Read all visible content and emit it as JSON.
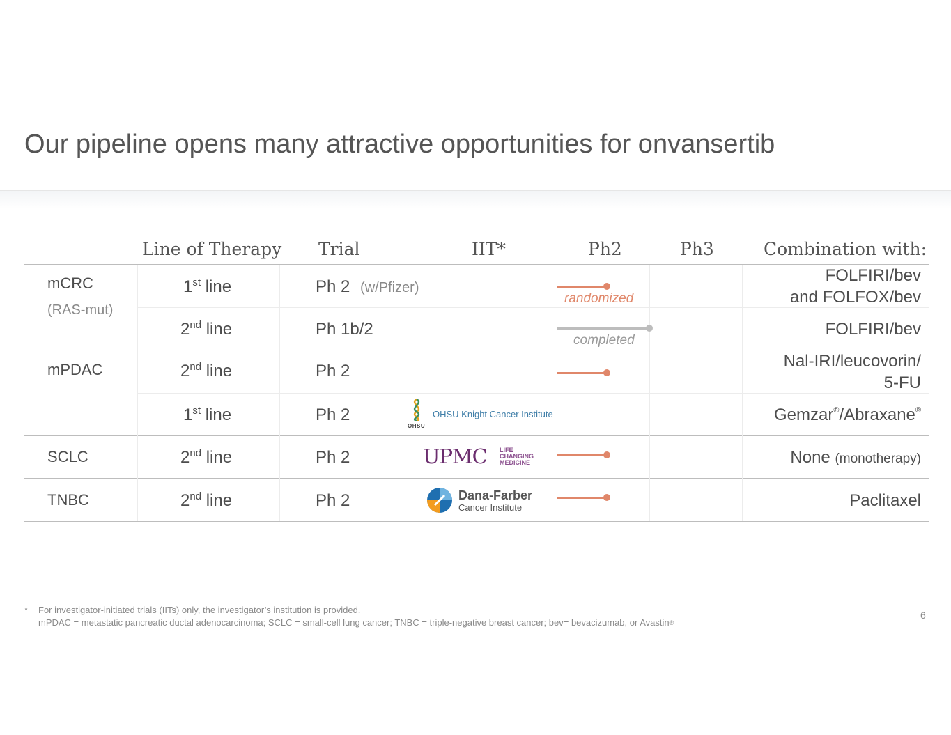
{
  "title": "Our pipeline opens many attractive opportunities for onvansertib",
  "colors": {
    "accent": "#e0876a",
    "completed": "#bdbdbd",
    "upmc": "#6b2d6e",
    "dfci_blue": "#1f6fb0",
    "dfci_orange": "#f39c1f"
  },
  "headers": {
    "line_of_therapy": "Line of Therapy",
    "trial": "Trial",
    "iit": "IIT*",
    "ph2": "Ph2",
    "ph3": "Ph3",
    "combination": "Combination with:"
  },
  "rows": [
    {
      "indication": "mCRC",
      "indication_sub": "(RAS-mut)",
      "line_num": "1",
      "line_sup": "st",
      "line_word": " line",
      "trial": "Ph 2",
      "trial_note": "(w/Pfizer)",
      "iit": "",
      "progress_label": "randomized",
      "combo_1": "FOLFIRI/bev",
      "combo_2": "and FOLFOX/bev"
    },
    {
      "line_num": "2",
      "line_sup": "nd",
      "line_word": " line",
      "trial": "Ph 1b/2",
      "progress_label": "completed",
      "combo_1": "FOLFIRI/bev"
    },
    {
      "indication": "mPDAC",
      "line_num": "2",
      "line_sup": "nd",
      "line_word": " line",
      "trial": "Ph 2",
      "combo_1": "Nal-IRI/leucovorin/",
      "combo_2": "5-FU"
    },
    {
      "line_num": "1",
      "line_sup": "st",
      "line_word": " line",
      "trial": "Ph 2",
      "iit": "OHSU Knight Cancer Institute",
      "iit_mark": "OHSU",
      "combo_a": "Gemzar",
      "combo_reg": "®",
      "combo_b": "/Abraxane",
      "combo_reg2": "®"
    },
    {
      "indication": "SCLC",
      "line_num": "2",
      "line_sup": "nd",
      "line_word": " line",
      "trial": "Ph 2",
      "iit": "UPMC",
      "iit_tag1": "LIFE",
      "iit_tag2": "CHANGING",
      "iit_tag3": "MEDICINE",
      "combo_1": "None",
      "combo_small": "(monotherapy)"
    },
    {
      "indication": "TNBC",
      "line_num": "2",
      "line_sup": "nd",
      "line_word": " line",
      "trial": "Ph 2",
      "iit": "Dana-Farber",
      "iit_sub": "Cancer Institute",
      "combo_1": "Paclitaxel"
    }
  ],
  "progress": [
    0.54,
    1.0,
    0.54,
    0,
    0.54,
    0.54
  ],
  "footnote_star": "*",
  "footnote_1": "For investigator-initiated trials (IITs) only, the investigator’s institution is provided.",
  "footnote_2": "mPDAC = metastatic pancreatic ductal adenocarcinoma; SCLC = small-cell lung cancer; TNBC = triple-negative breast cancer; bev= bevacizumab, or Avastin",
  "footnote_2_reg": "®",
  "page_number": "6"
}
